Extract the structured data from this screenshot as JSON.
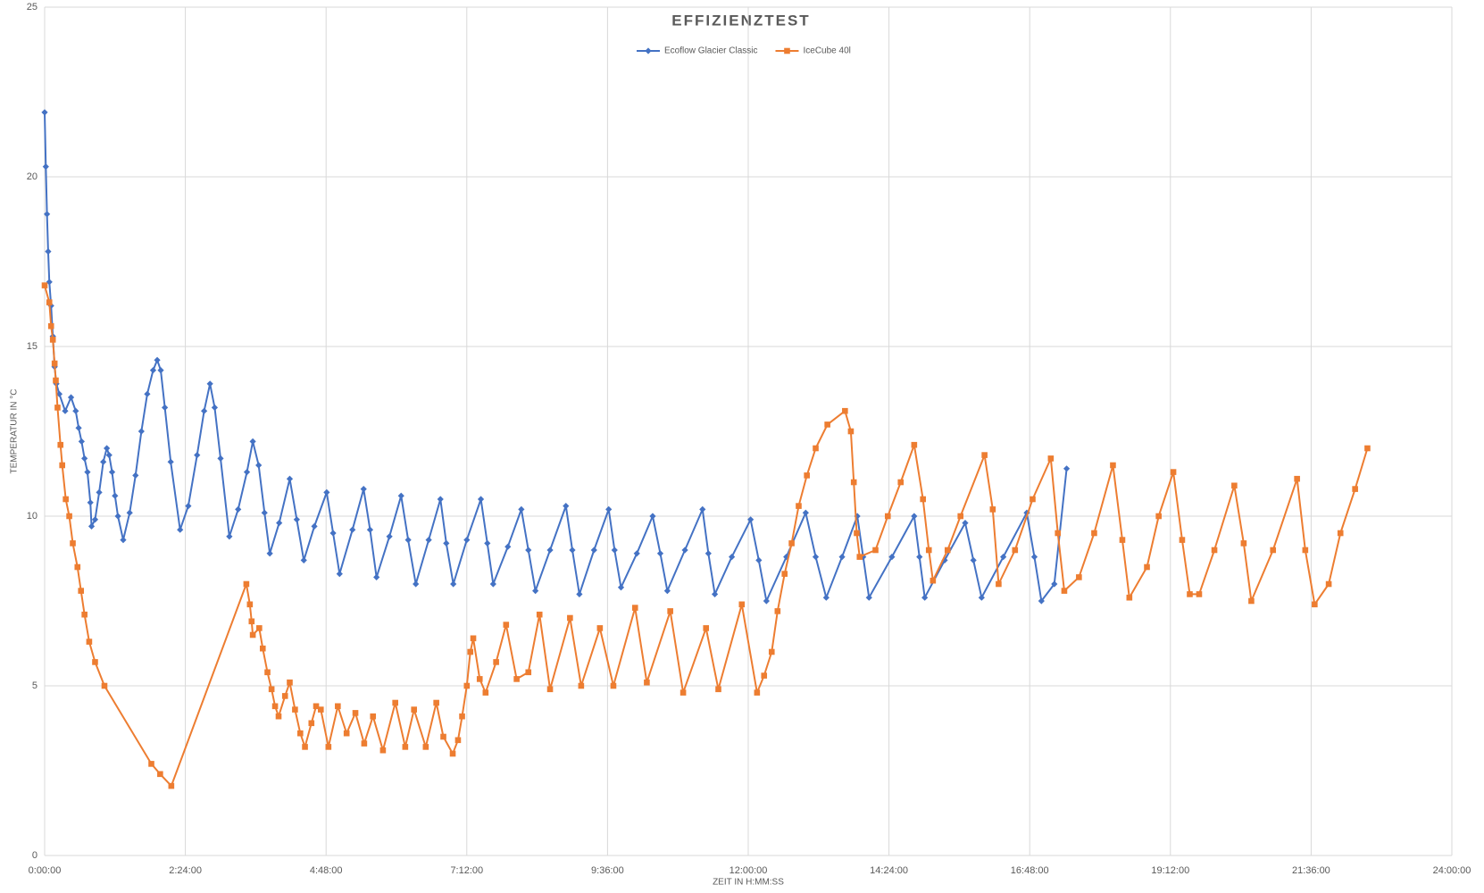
{
  "chart_data": {
    "type": "line",
    "title": "EFFIZIENZTEST",
    "x_label": "ZEIT IN H:MM:SS",
    "y_label": "TEMPERATUR IN °C",
    "xlim": [
      0,
      24
    ],
    "ylim": [
      0,
      25
    ],
    "xticks": [
      {
        "value": 0,
        "label": "0:00:00"
      },
      {
        "value": 2.4,
        "label": "2:24:00"
      },
      {
        "value": 4.8,
        "label": "4:48:00"
      },
      {
        "value": 7.2,
        "label": "7:12:00"
      },
      {
        "value": 9.6,
        "label": "9:36:00"
      },
      {
        "value": 12,
        "label": "12:00:00"
      },
      {
        "value": 14.4,
        "label": "14:24:00"
      },
      {
        "value": 16.8,
        "label": "16:48:00"
      },
      {
        "value": 19.2,
        "label": "19:12:00"
      },
      {
        "value": 21.6,
        "label": "21:36:00"
      },
      {
        "value": 24,
        "label": "24:00:00"
      }
    ],
    "yticks": [
      0,
      5,
      10,
      15,
      20,
      25
    ],
    "grid": true,
    "legend": "top",
    "series": [
      {
        "name": "Ecoflow Glacier Classic",
        "color": "#4472c4",
        "marker": "diamond",
        "x": [
          0,
          0.02,
          0.04,
          0.06,
          0.08,
          0.11,
          0.14,
          0.17,
          0.2,
          0.25,
          0.35,
          0.45,
          0.53,
          0.58,
          0.63,
          0.68,
          0.73,
          0.78,
          0.8,
          0.86,
          0.93,
          1.0,
          1.06,
          1.1,
          1.15,
          1.2,
          1.25,
          1.34,
          1.45,
          1.55,
          1.65,
          1.75,
          1.85,
          1.92,
          1.98,
          2.05,
          2.15,
          2.31,
          2.45,
          2.6,
          2.72,
          2.82,
          2.9,
          3.0,
          3.15,
          3.3,
          3.45,
          3.55,
          3.65,
          3.75,
          3.84,
          4.0,
          4.18,
          4.3,
          4.42,
          4.6,
          4.81,
          4.92,
          5.03,
          5.25,
          5.44,
          5.55,
          5.66,
          5.88,
          6.08,
          6.2,
          6.33,
          6.55,
          6.75,
          6.85,
          6.97,
          7.2,
          7.44,
          7.55,
          7.65,
          7.9,
          8.13,
          8.25,
          8.37,
          8.62,
          8.89,
          9.0,
          9.12,
          9.37,
          9.62,
          9.72,
          9.83,
          10.1,
          10.37,
          10.5,
          10.62,
          10.92,
          11.22,
          11.32,
          11.43,
          11.72,
          12.04,
          12.18,
          12.31,
          12.65,
          12.98,
          13.15,
          13.33,
          13.6,
          13.86,
          13.96,
          14.06,
          14.45,
          14.83,
          14.92,
          15.01,
          15.35,
          15.7,
          15.84,
          15.98,
          16.35,
          16.75,
          16.88,
          17.0,
          17.22,
          17.43
        ],
        "values": [
          21.9,
          20.3,
          18.9,
          17.8,
          16.9,
          16.2,
          15.3,
          14.4,
          13.9,
          13.6,
          13.1,
          13.5,
          13.1,
          12.6,
          12.2,
          11.7,
          11.3,
          10.4,
          9.7,
          9.9,
          10.7,
          11.6,
          12.0,
          11.8,
          11.3,
          10.6,
          10.0,
          9.3,
          10.1,
          11.2,
          12.5,
          13.6,
          14.3,
          14.6,
          14.3,
          13.2,
          11.6,
          9.6,
          10.3,
          11.8,
          13.1,
          13.9,
          13.2,
          11.7,
          9.4,
          10.2,
          11.3,
          12.2,
          11.5,
          10.1,
          8.9,
          9.8,
          11.1,
          9.9,
          8.7,
          9.7,
          10.7,
          9.5,
          8.3,
          9.6,
          10.8,
          9.6,
          8.2,
          9.4,
          10.6,
          9.3,
          8.0,
          9.3,
          10.5,
          9.2,
          8.0,
          9.3,
          10.5,
          9.2,
          8.0,
          9.1,
          10.2,
          9.0,
          7.8,
          9.0,
          10.3,
          9.0,
          7.7,
          9.0,
          10.2,
          9.0,
          7.9,
          8.9,
          10.0,
          8.9,
          7.8,
          9.0,
          10.2,
          8.9,
          7.7,
          8.8,
          9.9,
          8.7,
          7.5,
          8.8,
          10.1,
          8.8,
          7.6,
          8.8,
          10.0,
          8.8,
          7.6,
          8.8,
          10.0,
          8.8,
          7.6,
          8.7,
          9.8,
          8.7,
          7.6,
          8.8,
          10.1,
          8.8,
          7.5,
          8.0,
          11.4
        ]
      },
      {
        "name": "IceCube 40l",
        "color": "#ed7d31",
        "marker": "square",
        "x": [
          0,
          0.08,
          0.11,
          0.14,
          0.17,
          0.19,
          0.22,
          0.27,
          0.3,
          0.36,
          0.42,
          0.48,
          0.56,
          0.62,
          0.68,
          0.76,
          0.86,
          1.02,
          1.82,
          1.97,
          2.16,
          3.44,
          3.5,
          3.53,
          3.55,
          3.66,
          3.72,
          3.8,
          3.87,
          3.93,
          3.99,
          4.1,
          4.18,
          4.27,
          4.36,
          4.44,
          4.55,
          4.63,
          4.71,
          4.84,
          5.0,
          5.15,
          5.3,
          5.45,
          5.6,
          5.77,
          5.98,
          6.15,
          6.3,
          6.5,
          6.68,
          6.8,
          6.96,
          7.05,
          7.12,
          7.2,
          7.26,
          7.31,
          7.42,
          7.52,
          7.7,
          7.87,
          8.05,
          8.25,
          8.44,
          8.62,
          8.96,
          9.15,
          9.47,
          9.7,
          10.07,
          10.27,
          10.67,
          10.89,
          11.28,
          11.49,
          11.89,
          12.15,
          12.27,
          12.4,
          12.5,
          12.62,
          12.74,
          12.86,
          13.0,
          13.15,
          13.35,
          13.65,
          13.75,
          13.8,
          13.85,
          13.9,
          14.17,
          14.38,
          14.6,
          14.83,
          14.98,
          15.08,
          15.15,
          15.4,
          15.62,
          16.03,
          16.17,
          16.27,
          16.55,
          16.85,
          17.16,
          17.28,
          17.39,
          17.64,
          17.9,
          18.22,
          18.38,
          18.5,
          18.8,
          19.0,
          19.25,
          19.4,
          19.53,
          19.69,
          19.95,
          20.29,
          20.45,
          20.58,
          20.95,
          21.36,
          21.5,
          21.66,
          21.9,
          22.1,
          22.35,
          22.56
        ],
        "values": [
          16.8,
          16.3,
          15.6,
          15.2,
          14.5,
          14.0,
          13.2,
          12.1,
          11.5,
          10.5,
          10.0,
          9.2,
          8.5,
          7.8,
          7.1,
          6.3,
          5.7,
          5.0,
          2.7,
          2.4,
          2.05,
          8.0,
          7.4,
          6.9,
          6.5,
          6.7,
          6.1,
          5.4,
          4.9,
          4.4,
          4.1,
          4.7,
          5.1,
          4.3,
          3.6,
          3.2,
          3.9,
          4.4,
          4.3,
          3.2,
          4.4,
          3.6,
          4.2,
          3.3,
          4.1,
          3.1,
          4.5,
          3.2,
          4.3,
          3.2,
          4.5,
          3.5,
          3.0,
          3.4,
          4.1,
          5.0,
          6.0,
          6.4,
          5.2,
          4.8,
          5.7,
          6.8,
          5.2,
          5.4,
          7.1,
          4.9,
          7.0,
          5.0,
          6.7,
          5.0,
          7.3,
          5.1,
          7.2,
          4.8,
          6.7,
          4.9,
          7.4,
          4.8,
          5.3,
          6.0,
          7.2,
          8.3,
          9.2,
          10.3,
          11.2,
          12.0,
          12.7,
          13.1,
          12.5,
          11.0,
          9.5,
          8.8,
          9.0,
          10.0,
          11.0,
          12.1,
          10.5,
          9.0,
          8.1,
          9.0,
          10.0,
          11.8,
          10.2,
          8.0,
          9.0,
          10.5,
          11.7,
          9.5,
          7.8,
          8.2,
          9.5,
          11.5,
          9.3,
          7.6,
          8.5,
          10.0,
          11.3,
          9.3,
          7.7,
          7.7,
          9.0,
          10.9,
          9.2,
          7.5,
          9.0,
          11.1,
          9.0,
          7.4,
          8.0,
          9.5,
          10.8,
          12.0
        ]
      }
    ]
  }
}
